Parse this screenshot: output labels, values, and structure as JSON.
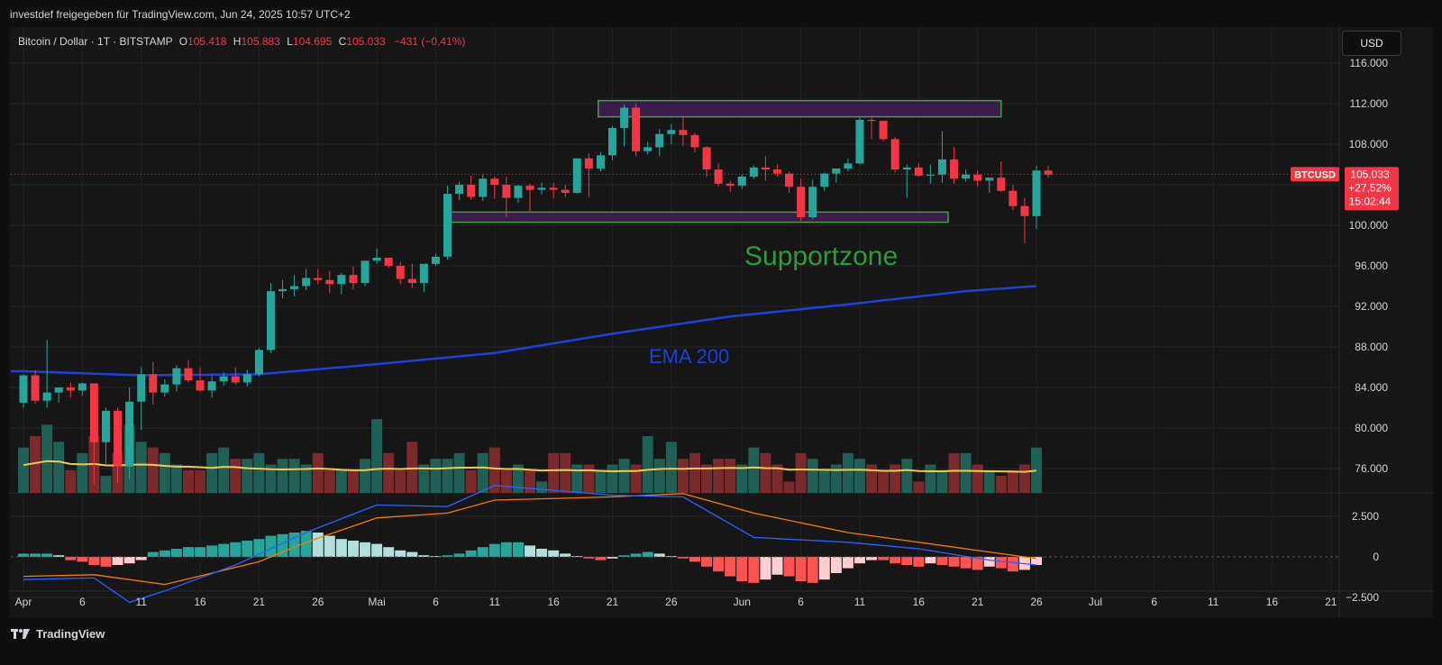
{
  "header": {
    "shared_by": "investdef freigegeben für TradingView.com, Jun 24, 2025 10:57 UTC+2"
  },
  "legend": {
    "symbol": "Bitcoin / Dollar · 1T · BITSTAMP",
    "open_label": "O",
    "open": "105.418",
    "high_label": "H",
    "high": "105.883",
    "low_label": "L",
    "low": "104.695",
    "close_label": "C",
    "close": "105.033",
    "change": "−431 (−0,41%)"
  },
  "currency_button": "USD",
  "price_tag": {
    "ticker": "BTCUSD",
    "price": "105.033",
    "change": "+27,52%",
    "countdown": "15:02:44"
  },
  "annotations": {
    "support": "Supportzone",
    "ema": "EMA 200"
  },
  "footer": {
    "brand": "TradingView"
  },
  "colors": {
    "up": "#26a69a",
    "down": "#f23645",
    "ema200": "#1e3fd8",
    "vol_ma": "#f2c94c",
    "support_text": "#2e9a3e",
    "zone_fill": "#3b1d4c",
    "zone_border": "#3fa33a"
  },
  "chart_data": {
    "type": "candlestick",
    "title": "Bitcoin / Dollar · 1T · BITSTAMP",
    "price_axis": {
      "ylim": [
        72000,
        118000
      ],
      "ticks": [
        "116.000",
        "112.000",
        "108.000",
        "104.000",
        "100.000",
        "96.000",
        "92.000",
        "88.000",
        "84.000",
        "80.000",
        "76.000"
      ],
      "tick_values": [
        116000,
        112000,
        108000,
        104000,
        100000,
        96000,
        92000,
        88000,
        84000,
        80000,
        76000
      ]
    },
    "macd_axis": {
      "ticks": [
        "2.500",
        "0",
        "−2.500"
      ],
      "tick_values": [
        2500,
        0,
        -2500
      ]
    },
    "x_ticks": [
      {
        "label": "Apr",
        "day": 0
      },
      {
        "label": "6",
        "day": 5
      },
      {
        "label": "11",
        "day": 10
      },
      {
        "label": "16",
        "day": 15
      },
      {
        "label": "21",
        "day": 20
      },
      {
        "label": "26",
        "day": 25
      },
      {
        "label": "Mai",
        "day": 30
      },
      {
        "label": "6",
        "day": 35
      },
      {
        "label": "11",
        "day": 40
      },
      {
        "label": "16",
        "day": 45
      },
      {
        "label": "21",
        "day": 50
      },
      {
        "label": "26",
        "day": 55
      },
      {
        "label": "Jun",
        "day": 61
      },
      {
        "label": "6",
        "day": 66
      },
      {
        "label": "11",
        "day": 71
      },
      {
        "label": "16",
        "day": 76
      },
      {
        "label": "21",
        "day": 81
      },
      {
        "label": "26",
        "day": 86
      },
      {
        "label": "Jul",
        "day": 91
      },
      {
        "label": "6",
        "day": 96
      },
      {
        "label": "11",
        "day": 101
      },
      {
        "label": "16",
        "day": 106
      },
      {
        "label": "21",
        "day": 111
      }
    ],
    "candles": [
      [
        82500,
        85300,
        82000,
        85200
      ],
      [
        85200,
        85700,
        82400,
        82700
      ],
      [
        82700,
        88700,
        82000,
        83500
      ],
      [
        83500,
        84000,
        82500,
        84000
      ],
      [
        84000,
        84500,
        83000,
        83700
      ],
      [
        83700,
        84500,
        83200,
        84400
      ],
      [
        84400,
        84200,
        74500,
        78600
      ],
      [
        78600,
        82000,
        76500,
        81700
      ],
      [
        81700,
        82000,
        74600,
        76200
      ],
      [
        76200,
        84000,
        75000,
        82600
      ],
      [
        82600,
        86000,
        79800,
        85300
      ],
      [
        85300,
        86500,
        82300,
        83500
      ],
      [
        83500,
        84800,
        83100,
        84300
      ],
      [
        84300,
        86200,
        83600,
        85900
      ],
      [
        85900,
        86700,
        84500,
        84700
      ],
      [
        84700,
        86000,
        83600,
        83700
      ],
      [
        83700,
        85200,
        83000,
        84600
      ],
      [
        84600,
        85500,
        84200,
        85100
      ],
      [
        85100,
        86000,
        84300,
        84500
      ],
      [
        84500,
        85700,
        84100,
        85300
      ],
      [
        85300,
        87900,
        85100,
        87700
      ],
      [
        87700,
        94300,
        87400,
        93500
      ],
      [
        93500,
        94600,
        92800,
        93700
      ],
      [
        93700,
        95100,
        93000,
        94000
      ],
      [
        94000,
        95700,
        93600,
        94800
      ],
      [
        94800,
        95700,
        94200,
        94600
      ],
      [
        94600,
        95500,
        93300,
        94200
      ],
      [
        94200,
        95300,
        93200,
        95100
      ],
      [
        95100,
        95900,
        93700,
        94300
      ],
      [
        94300,
        96500,
        94000,
        96500
      ],
      [
        96500,
        97700,
        96200,
        96800
      ],
      [
        96800,
        96800,
        95800,
        96000
      ],
      [
        96000,
        96400,
        94200,
        94700
      ],
      [
        94700,
        96200,
        93800,
        94300
      ],
      [
        94300,
        96000,
        93400,
        96200
      ],
      [
        96200,
        97200,
        96000,
        96900
      ],
      [
        96900,
        103900,
        96600,
        103100
      ],
      [
        103100,
        104300,
        102500,
        104000
      ],
      [
        104000,
        104900,
        102500,
        102800
      ],
      [
        102800,
        105000,
        102400,
        104600
      ],
      [
        104600,
        104800,
        102600,
        104000
      ],
      [
        104000,
        104800,
        100800,
        102700
      ],
      [
        102700,
        104000,
        102200,
        103900
      ],
      [
        103900,
        104100,
        101400,
        103500
      ],
      [
        103500,
        104200,
        103000,
        103700
      ],
      [
        103700,
        104200,
        102700,
        103500
      ],
      [
        103500,
        104000,
        102800,
        103200
      ],
      [
        103200,
        106500,
        103100,
        106600
      ],
      [
        106600,
        107100,
        102800,
        105600
      ],
      [
        105600,
        107200,
        105300,
        106900
      ],
      [
        106900,
        109800,
        106400,
        109600
      ],
      [
        109600,
        111900,
        107800,
        111600
      ],
      [
        111600,
        112000,
        106800,
        107300
      ],
      [
        107300,
        108200,
        107000,
        107700
      ],
      [
        107700,
        109500,
        106800,
        109000
      ],
      [
        109000,
        110000,
        108000,
        109400
      ],
      [
        109400,
        110800,
        107800,
        108900
      ],
      [
        108900,
        109100,
        107200,
        107700
      ],
      [
        107700,
        107800,
        104800,
        105500
      ],
      [
        105500,
        106100,
        103800,
        104100
      ],
      [
        104100,
        104400,
        103300,
        103900
      ],
      [
        103900,
        105000,
        103600,
        104800
      ],
      [
        104800,
        105900,
        104600,
        105700
      ],
      [
        105700,
        106800,
        104400,
        105500
      ],
      [
        105500,
        106000,
        104800,
        105100
      ],
      [
        105100,
        105300,
        103200,
        103800
      ],
      [
        103800,
        104600,
        100400,
        100800
      ],
      [
        100800,
        104500,
        100600,
        103800
      ],
      [
        103800,
        105200,
        103400,
        105100
      ],
      [
        105100,
        105600,
        104200,
        105600
      ],
      [
        105600,
        106600,
        105300,
        106100
      ],
      [
        106100,
        110700,
        106000,
        110400
      ],
      [
        110400,
        110800,
        108500,
        110300
      ],
      [
        110300,
        110300,
        108300,
        108500
      ],
      [
        108500,
        108700,
        105200,
        105500
      ],
      [
        105500,
        106000,
        102700,
        105700
      ],
      [
        105700,
        106100,
        104800,
        104900
      ],
      [
        104900,
        106000,
        104100,
        105000
      ],
      [
        105000,
        109300,
        104200,
        106500
      ],
      [
        106500,
        107700,
        104100,
        104600
      ],
      [
        104600,
        105500,
        104300,
        105000
      ],
      [
        105000,
        105400,
        103800,
        104400
      ],
      [
        104400,
        104700,
        103200,
        104700
      ],
      [
        104700,
        106300,
        103300,
        103400
      ],
      [
        103400,
        104000,
        101500,
        101900
      ],
      [
        101900,
        102700,
        98200,
        100900
      ],
      [
        100900,
        105900,
        99600,
        105400
      ],
      [
        105400,
        105900,
        104700,
        105000
      ]
    ],
    "volume": {
      "bars": [
        8,
        10,
        12,
        9,
        4,
        7,
        10,
        3,
        7,
        12,
        9,
        8,
        7,
        5,
        4,
        4,
        7,
        8,
        6,
        6,
        7,
        5,
        6,
        6,
        5,
        7,
        4,
        4,
        4,
        6,
        13,
        7,
        4,
        9,
        5,
        6,
        6,
        7,
        4,
        7,
        8,
        4,
        5,
        4,
        2,
        7,
        7,
        5,
        5,
        4,
        5,
        6,
        5,
        10,
        6,
        9,
        6,
        7,
        5,
        6,
        6,
        5,
        8,
        7,
        5,
        2,
        7,
        6,
        4,
        5,
        7,
        6,
        5,
        4,
        5,
        6,
        2,
        5,
        4,
        7,
        7,
        5,
        4,
        3,
        4,
        5,
        8
      ],
      "ma_label": "Volume MA"
    },
    "ema200": [
      [
        0,
        85600
      ],
      [
        10,
        85200
      ],
      [
        20,
        85300
      ],
      [
        30,
        86300
      ],
      [
        40,
        87400
      ],
      [
        50,
        89300
      ],
      [
        60,
        91000
      ],
      [
        70,
        92200
      ],
      [
        80,
        93500
      ],
      [
        86,
        94000
      ]
    ],
    "macd": {
      "macd_line": [
        [
          0,
          -1400
        ],
        [
          6,
          -1300
        ],
        [
          9,
          -2800
        ],
        [
          12,
          -2100
        ],
        [
          18,
          -500
        ],
        [
          24,
          1500
        ],
        [
          30,
          3200
        ],
        [
          36,
          3100
        ],
        [
          40,
          4400
        ],
        [
          50,
          3800
        ],
        [
          56,
          3700
        ],
        [
          62,
          1200
        ],
        [
          70,
          900
        ],
        [
          76,
          500
        ],
        [
          82,
          -200
        ],
        [
          86,
          -500
        ]
      ],
      "signal_line": [
        [
          0,
          -1200
        ],
        [
          6,
          -1100
        ],
        [
          12,
          -1700
        ],
        [
          20,
          -300
        ],
        [
          24,
          900
        ],
        [
          30,
          2400
        ],
        [
          36,
          2700
        ],
        [
          40,
          3500
        ],
        [
          50,
          3700
        ],
        [
          56,
          3900
        ],
        [
          62,
          2700
        ],
        [
          70,
          1500
        ],
        [
          76,
          900
        ],
        [
          82,
          300
        ],
        [
          86,
          -100
        ]
      ],
      "histogram": [
        200,
        200,
        200,
        100,
        -200,
        -300,
        -500,
        -600,
        -500,
        -400,
        -200,
        300,
        400,
        500,
        600,
        600,
        700,
        800,
        900,
        1000,
        1100,
        1300,
        1400,
        1500,
        1600,
        1500,
        1300,
        1100,
        1000,
        900,
        800,
        600,
        400,
        300,
        100,
        50,
        100,
        200,
        400,
        600,
        800,
        900,
        900,
        700,
        500,
        400,
        200,
        50,
        -100,
        -200,
        -100,
        100,
        200,
        300,
        200,
        50,
        -100,
        -300,
        -600,
        -900,
        -1200,
        -1500,
        -1600,
        -1400,
        -1100,
        -1200,
        -1500,
        -1600,
        -1400,
        -1000,
        -700,
        -400,
        -200,
        -200,
        -400,
        -500,
        -600,
        -400,
        -500,
        -600,
        -700,
        -800,
        -600,
        -700,
        -900,
        -800,
        -500
      ],
      "zero_label": "0"
    },
    "zones": [
      {
        "name": "resistance",
        "y_range": [
          110700,
          112300
        ],
        "day_range": [
          48.8,
          83
        ]
      },
      {
        "name": "support",
        "y_range": [
          100300,
          101300
        ],
        "day_range": [
          36.3,
          78.5
        ]
      }
    ],
    "current_price": 105033
  }
}
